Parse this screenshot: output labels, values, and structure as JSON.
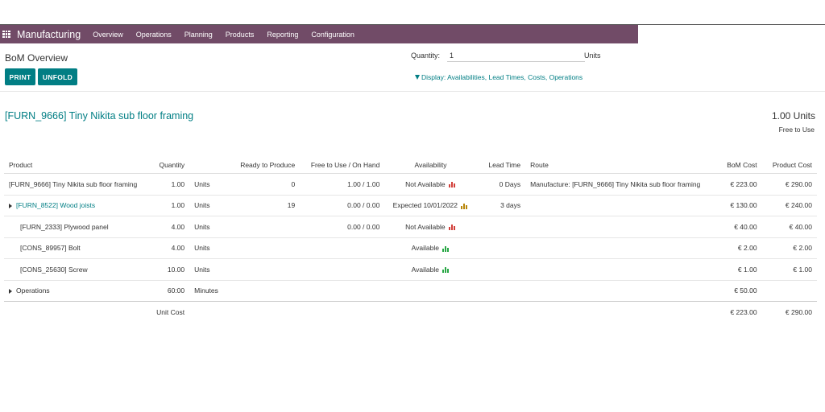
{
  "navbar": {
    "app_name": "Manufacturing",
    "menu": [
      "Overview",
      "Operations",
      "Planning",
      "Products",
      "Reporting",
      "Configuration"
    ]
  },
  "page": {
    "title": "BoM Overview",
    "quantity_label": "Quantity:",
    "quantity_value": "1",
    "quantity_units": "Units",
    "print_label": "PRINT",
    "unfold_label": "UNFOLD",
    "display_filter": "Display: Availabilities, Lead Times, Costs, Operations"
  },
  "product": {
    "title": "[FURN_9666] Tiny Nikita sub floor framing",
    "quantity": "1.00 Units",
    "status": "Free to Use"
  },
  "table": {
    "headers": [
      "Product",
      "Quantity",
      "Ready to Produce",
      "Free to Use / On Hand",
      "Availability",
      "Lead Time",
      "Route",
      "BoM Cost",
      "Product Cost"
    ],
    "rows": [
      {
        "product": "[FURN_9666] Tiny Nikita sub floor framing",
        "qty": "1.00",
        "uom": "Units",
        "ready": "0",
        "free": "1.00 / 1.00",
        "avail": "Not Available",
        "lead": "0 Days",
        "route": "Manufacture: [FURN_9666] Tiny Nikita sub floor framing",
        "bom": "€ 223.00",
        "cost": "€ 290.00"
      },
      {
        "product": "[FURN_8522] Wood joists",
        "qty": "1.00",
        "uom": "Units",
        "ready": "19",
        "free": "0.00 / 0.00",
        "avail": "Expected 10/01/2022",
        "lead": "3 days",
        "route": "",
        "bom": "€ 130.00",
        "cost": "€ 240.00"
      },
      {
        "product": "[FURN_2333] Plywood panel",
        "qty": "4.00",
        "uom": "Units",
        "ready": "",
        "free": "0.00 / 0.00",
        "avail": "Not Available",
        "lead": "",
        "route": "",
        "bom": "€ 40.00",
        "cost": "€ 40.00"
      },
      {
        "product": "[CONS_89957] Bolt",
        "qty": "4.00",
        "uom": "Units",
        "ready": "",
        "free": "",
        "avail": "Available",
        "lead": "",
        "route": "",
        "bom": "€ 2.00",
        "cost": "€ 2.00"
      },
      {
        "product": "[CONS_25630] Screw",
        "qty": "10.00",
        "uom": "Units",
        "ready": "",
        "free": "",
        "avail": "Available",
        "lead": "",
        "route": "",
        "bom": "€ 1.00",
        "cost": "€ 1.00"
      },
      {
        "product": "Operations",
        "qty": "60:00",
        "uom": "Minutes",
        "ready": "",
        "free": "",
        "avail": "",
        "lead": "",
        "route": "",
        "bom": "€ 50.00",
        "cost": ""
      }
    ],
    "footer": {
      "label": "Unit Cost",
      "bom": "€ 223.00",
      "cost": "€ 290.00"
    }
  },
  "colors": {
    "navbar": "#714B67",
    "primary": "#017e84",
    "not_available": "#d23f3a",
    "expected": "#b8860b",
    "available": "#28a745"
  }
}
